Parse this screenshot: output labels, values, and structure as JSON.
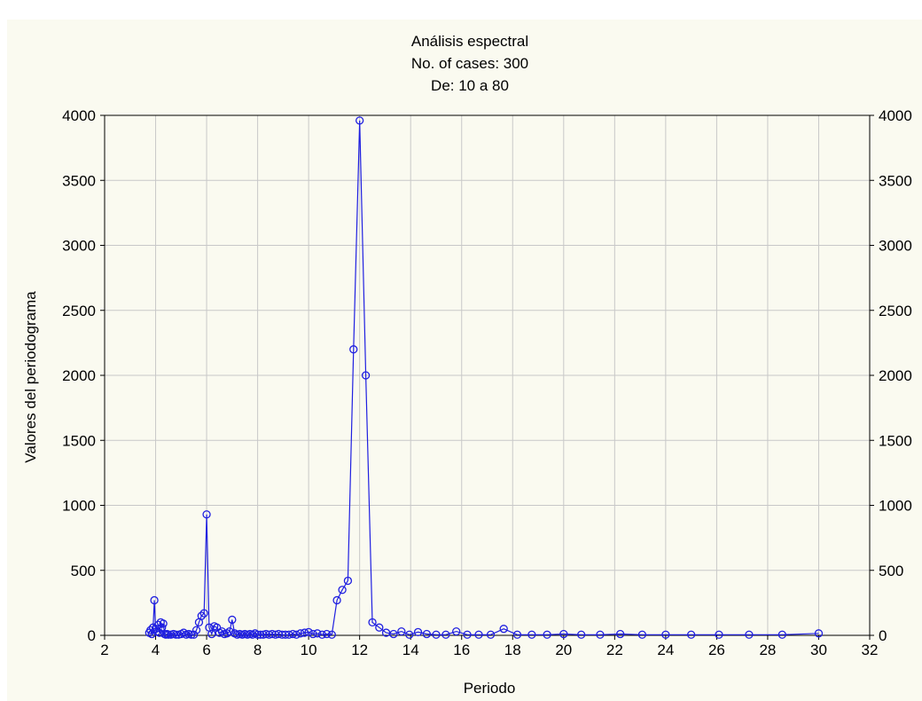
{
  "chart_data": {
    "type": "line",
    "title": "Análisis espectral",
    "subtitle_lines": [
      "No. of cases: 300",
      "De: 10 a 80"
    ],
    "xlabel": "Periodo",
    "ylabel": "Valores del periodograma",
    "xlim": [
      2,
      32
    ],
    "ylim": [
      0,
      4000
    ],
    "xticks": [
      "2",
      "4",
      "6",
      "8",
      "10",
      "12",
      "14",
      "16",
      "18",
      "20",
      "22",
      "24",
      "26",
      "28",
      "30",
      "32"
    ],
    "yticks": [
      "0",
      "500",
      "1000",
      "1500",
      "2000",
      "2500",
      "3000",
      "3500",
      "4000"
    ],
    "grid": true,
    "line_color": "#1f1fe0",
    "series": [
      {
        "x": [
          3.75,
          3.8,
          3.85,
          3.9,
          3.95,
          4.0,
          4.05,
          4.1,
          4.15,
          4.2,
          4.25,
          4.3,
          4.35,
          4.4,
          4.45,
          4.5,
          4.6,
          4.7,
          4.8,
          4.9,
          5.0,
          5.1,
          5.2,
          5.3,
          5.4,
          5.5,
          5.6,
          5.7,
          5.8,
          5.9,
          6.0,
          6.1,
          6.2,
          6.3,
          6.4,
          6.5,
          6.6,
          6.7,
          6.8,
          6.9,
          7.0,
          7.1,
          7.2,
          7.3,
          7.4,
          7.5,
          7.6,
          7.7,
          7.8,
          7.9,
          8.0,
          8.11,
          8.22,
          8.33,
          8.45,
          8.57,
          8.7,
          8.82,
          8.96,
          9.09,
          9.23,
          9.38,
          9.52,
          9.68,
          9.84,
          10.0,
          10.17,
          10.34,
          10.53,
          10.71,
          10.91,
          11.11,
          11.32,
          11.54,
          11.76,
          12.0,
          12.24,
          12.5,
          12.77,
          13.04,
          13.33,
          13.64,
          13.95,
          14.29,
          14.63,
          15.0,
          15.38,
          15.79,
          16.22,
          16.67,
          17.14,
          17.65,
          18.18,
          18.75,
          19.35,
          20.0,
          20.69,
          21.43,
          22.22,
          23.08,
          24.0,
          25.0,
          26.09,
          27.27,
          28.57,
          30.0
        ],
        "y": [
          20,
          40,
          10,
          60,
          270,
          50,
          30,
          80,
          20,
          100,
          60,
          90,
          10,
          5,
          10,
          5,
          5,
          10,
          5,
          5,
          10,
          20,
          5,
          10,
          5,
          5,
          40,
          100,
          150,
          170,
          930,
          60,
          10,
          70,
          60,
          20,
          30,
          10,
          15,
          30,
          120,
          15,
          5,
          10,
          5,
          10,
          5,
          10,
          5,
          15,
          5,
          5,
          5,
          10,
          5,
          10,
          5,
          10,
          5,
          5,
          5,
          10,
          5,
          15,
          20,
          25,
          10,
          15,
          5,
          10,
          5,
          270,
          350,
          420,
          2200,
          3960,
          2000,
          100,
          60,
          20,
          10,
          30,
          5,
          25,
          10,
          5,
          5,
          30,
          5,
          5,
          5,
          50,
          5,
          5,
          5,
          10,
          5,
          5,
          10,
          5,
          5,
          5,
          5,
          5,
          5,
          15
        ]
      }
    ]
  }
}
